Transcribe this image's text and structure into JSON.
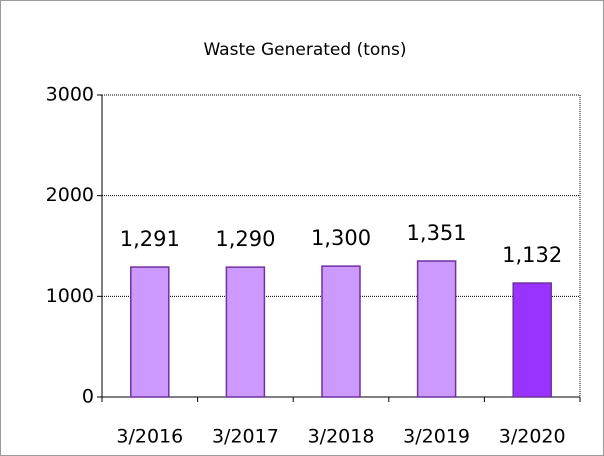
{
  "chart_data": {
    "type": "bar",
    "title": "Waste Generated (tons)",
    "categories": [
      "3/2016",
      "3/2017",
      "3/2018",
      "3/2019",
      "3/2020"
    ],
    "values": [
      1291,
      1290,
      1300,
      1351,
      1132
    ],
    "value_labels": [
      "1,291",
      "1,290",
      "1,300",
      "1,351",
      "1,132"
    ],
    "colors": [
      "#cc99ff",
      "#cc99ff",
      "#cc99ff",
      "#cc99ff",
      "#9933ff"
    ],
    "ylim": [
      0,
      3000
    ],
    "yticks": [
      0,
      1000,
      2000,
      3000
    ],
    "grid": true
  }
}
